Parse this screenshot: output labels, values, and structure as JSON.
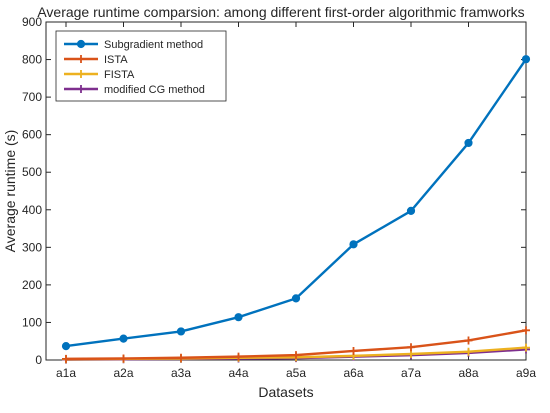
{
  "chart_data": {
    "type": "line",
    "title": "Average runtime comparsion: among different first-order algorithmic framworks",
    "xlabel": "Datasets",
    "ylabel": "Average runtime (s)",
    "categories": [
      "a1a",
      "a2a",
      "a3a",
      "a4a",
      "a5a",
      "a6a",
      "a7a",
      "a8a",
      "a9a"
    ],
    "ylim": [
      0,
      900
    ],
    "yticks": [
      0,
      100,
      200,
      300,
      400,
      500,
      600,
      700,
      800,
      900
    ],
    "grid": false,
    "legend_position": "top-left",
    "series": [
      {
        "name": "Subgradient method",
        "color": "#0072BD",
        "marker": "circle",
        "values": [
          37,
          57,
          76,
          114,
          164,
          308,
          397,
          578,
          801
        ]
      },
      {
        "name": "ISTA",
        "color": "#D95319",
        "marker": "plus",
        "values": [
          3,
          4,
          6,
          9,
          13,
          24,
          34,
          52,
          79
        ]
      },
      {
        "name": "FISTA",
        "color": "#EDB120",
        "marker": "plus",
        "values": [
          2,
          3,
          4,
          6,
          7,
          11,
          16,
          22,
          33
        ]
      },
      {
        "name": "modified CG method",
        "color": "#7E2F8E",
        "marker": "plus",
        "values": [
          1,
          2,
          3,
          4,
          5,
          9,
          13,
          19,
          28
        ]
      }
    ]
  }
}
